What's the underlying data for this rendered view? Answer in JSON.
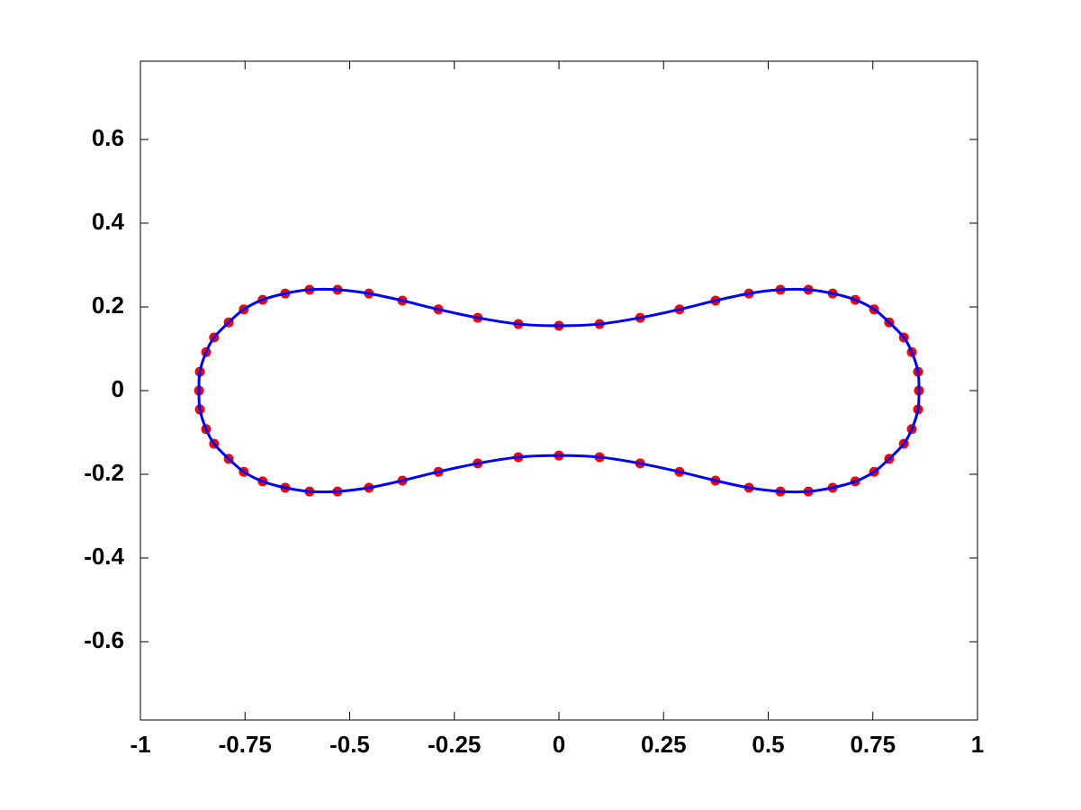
{
  "chart_data": {
    "type": "scatter",
    "xlim": [
      -1,
      1
    ],
    "ylim": [
      -0.787,
      0.787
    ],
    "xticks": [
      -1,
      -0.75,
      -0.5,
      -0.25,
      0,
      0.25,
      0.5,
      0.75,
      1
    ],
    "yticks": [
      -0.6,
      -0.4,
      -0.2,
      0,
      0.2,
      0.4,
      0.6
    ],
    "grid": false,
    "series": [
      {
        "marker_color": "#ff0000",
        "line_color": "#0000ff",
        "closed": true,
        "x": [
          -0.86,
          -0.858,
          -0.843,
          -0.824,
          -0.789,
          -0.753,
          -0.708,
          -0.654,
          -0.596,
          -0.529,
          -0.454,
          -0.374,
          -0.288,
          -0.194,
          -0.097,
          0,
          0.097,
          0.194,
          0.288,
          0.374,
          0.454,
          0.529,
          0.596,
          0.654,
          0.708,
          0.753,
          0.789,
          0.824,
          0.843,
          0.858,
          0.86,
          0.858,
          0.843,
          0.824,
          0.789,
          0.753,
          0.708,
          0.654,
          0.596,
          0.529,
          0.454,
          0.374,
          0.288,
          0.194,
          0.097,
          0,
          -0.097,
          -0.194,
          -0.288,
          -0.374,
          -0.454,
          -0.529,
          -0.596,
          -0.654,
          -0.708,
          -0.753,
          -0.789,
          -0.824,
          -0.843,
          -0.858
        ],
        "values": [
          0,
          0.045,
          0.092,
          0.127,
          0.163,
          0.194,
          0.217,
          0.232,
          0.241,
          0.241,
          0.232,
          0.215,
          0.194,
          0.174,
          0.159,
          0.155,
          0.159,
          0.174,
          0.194,
          0.215,
          0.232,
          0.241,
          0.241,
          0.232,
          0.217,
          0.194,
          0.163,
          0.127,
          0.092,
          0.045,
          0,
          -0.045,
          -0.092,
          -0.127,
          -0.163,
          -0.194,
          -0.217,
          -0.232,
          -0.241,
          -0.241,
          -0.232,
          -0.215,
          -0.194,
          -0.174,
          -0.159,
          -0.155,
          -0.159,
          -0.174,
          -0.194,
          -0.215,
          -0.232,
          -0.241,
          -0.241,
          -0.232,
          -0.217,
          -0.194,
          -0.163,
          -0.127,
          -0.092,
          -0.045
        ]
      }
    ]
  }
}
